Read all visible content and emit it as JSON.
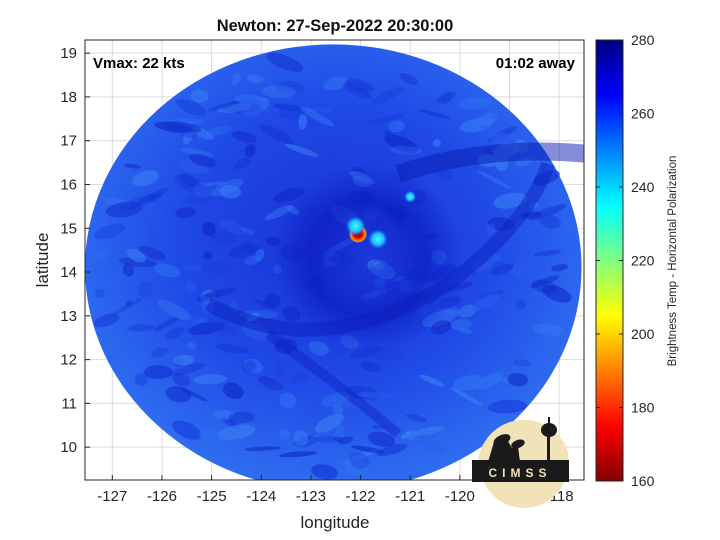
{
  "chart_data": {
    "type": "heatmap",
    "title": "Newton: 27-Sep-2022 20:30:00",
    "xlabel": "longitude",
    "ylabel": "latitude",
    "xlim": [
      -127.55,
      -117.5
    ],
    "ylim": [
      9.25,
      19.3
    ],
    "x_ticks": [
      -127,
      -126,
      -125,
      -124,
      -123,
      -122,
      -121,
      -120,
      -119,
      -118
    ],
    "y_ticks": [
      10,
      11,
      12,
      13,
      14,
      15,
      16,
      17,
      18,
      19
    ],
    "grid": true,
    "swath": {
      "center_lon": -122.55,
      "center_lat": 14.1,
      "radius_lon": 5.0,
      "radius_lat": 5.1
    },
    "annotations": {
      "vmax": "Vmax: 22 kts",
      "time_away": "01:02 away"
    },
    "colorbar": {
      "label": "Brightness Temp - Horizontal Polarization",
      "min": 160,
      "max": 280,
      "ticks": [
        160,
        180,
        200,
        220,
        240,
        260,
        280
      ],
      "colormap": [
        "#800000",
        "#ff0000",
        "#ff8000",
        "#ffff00",
        "#80ff80",
        "#00ffff",
        "#0080ff",
        "#0000ff",
        "#000080"
      ]
    },
    "features": [
      {
        "name": "warm core",
        "lon": -122.05,
        "lat": 14.87,
        "value": 170
      },
      {
        "name": "convection",
        "lon": -122.1,
        "lat": 15.05,
        "value": 235
      },
      {
        "name": "convection",
        "lon": -121.65,
        "lat": 14.75,
        "value": 240
      },
      {
        "name": "convection",
        "lon": -121.0,
        "lat": 15.72,
        "value": 242
      }
    ],
    "background_value": 262
  },
  "logo": {
    "text": "CIMSS"
  }
}
